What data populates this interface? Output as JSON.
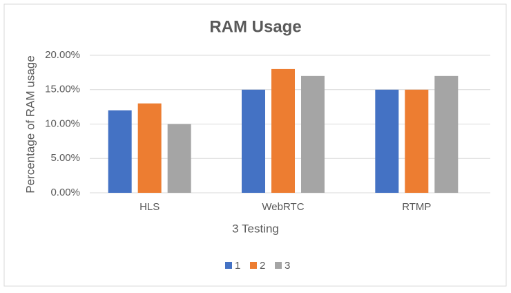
{
  "chart_data": {
    "type": "bar",
    "title": "RAM Usage",
    "x_label": "3 Testing",
    "y_label": "Percentage of RAM usage",
    "categories": [
      "HLS",
      "WebRTC",
      "RTMP"
    ],
    "series": [
      {
        "name": "1",
        "color": "#4472c4",
        "values": [
          12,
          15,
          15
        ]
      },
      {
        "name": "2",
        "color": "#ed7d31",
        "values": [
          13,
          18,
          15
        ]
      },
      {
        "name": "3",
        "color": "#a5a5a5",
        "values": [
          10,
          17,
          17
        ]
      }
    ],
    "ylim": [
      0,
      20
    ],
    "yticks": [
      {
        "value": 0,
        "label": "0.00%"
      },
      {
        "value": 5,
        "label": "5.00%"
      },
      {
        "value": 10,
        "label": "10.00%"
      },
      {
        "value": 15,
        "label": "15.00%"
      },
      {
        "value": 20,
        "label": "20.00%"
      }
    ],
    "grid": true,
    "legend": "bottom"
  }
}
